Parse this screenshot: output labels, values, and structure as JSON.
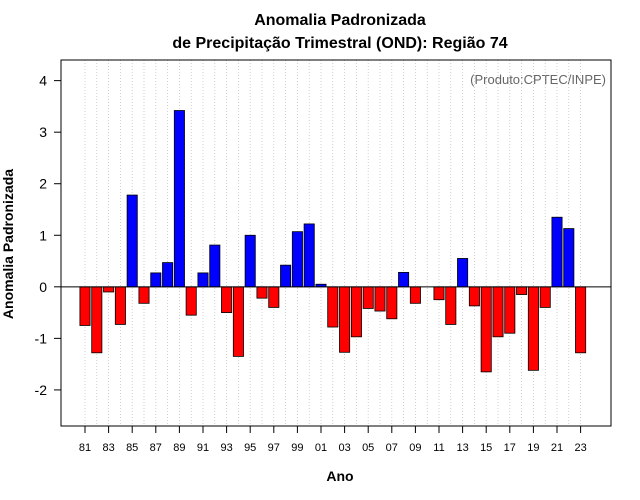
{
  "chart_data": {
    "type": "bar",
    "title": "Anomalia Padronizada",
    "subtitle": "de Precipitação Trimestral (OND): Região 74",
    "xlabel": "Ano",
    "ylabel": "Anomalia Padronizada",
    "credit": "(Produto:CPTEC/INPE)",
    "ylim": [
      -2.7,
      4.4
    ],
    "yticks": [
      "-2",
      "-1",
      "0",
      "1",
      "2",
      "3",
      "4"
    ],
    "grid": "vertical dotted",
    "colors": {
      "positive": "#0000ff",
      "negative": "#ff0000",
      "edge": "#000000",
      "grid": "#bbbbbb"
    },
    "categories": [
      "81",
      "82",
      "83",
      "84",
      "85",
      "86",
      "87",
      "88",
      "89",
      "90",
      "91",
      "92",
      "93",
      "94",
      "95",
      "96",
      "97",
      "98",
      "99",
      "00",
      "01",
      "02",
      "03",
      "04",
      "05",
      "06",
      "07",
      "08",
      "09",
      "10",
      "11",
      "12",
      "13",
      "14",
      "15",
      "16",
      "17",
      "18",
      "19",
      "20",
      "21",
      "22",
      "23"
    ],
    "values": [
      -0.75,
      -1.28,
      -0.1,
      -0.73,
      1.78,
      -0.32,
      0.27,
      0.47,
      3.42,
      -0.55,
      0.27,
      0.81,
      -0.5,
      -1.35,
      1.0,
      -0.22,
      -0.4,
      0.42,
      1.07,
      1.22,
      0.05,
      -0.78,
      -1.27,
      -0.97,
      -0.42,
      -0.47,
      -0.62,
      0.28,
      -0.32,
      0.0,
      -0.25,
      -0.73,
      0.55,
      -0.37,
      -1.65,
      -0.97,
      -0.9,
      -0.15,
      -1.62,
      -0.4,
      1.35,
      1.13,
      -1.28
    ],
    "xtick_labels": [
      "81",
      "83",
      "85",
      "87",
      "89",
      "91",
      "93",
      "95",
      "97",
      "99",
      "01",
      "03",
      "05",
      "07",
      "09",
      "11",
      "13",
      "15",
      "17",
      "19",
      "21",
      "23"
    ]
  }
}
